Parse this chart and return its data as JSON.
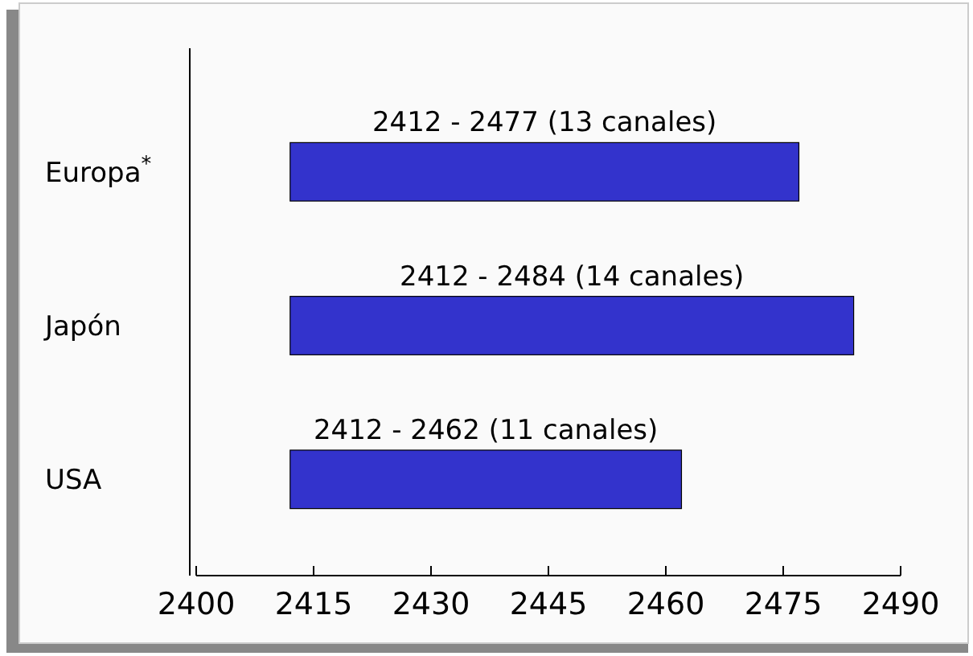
{
  "chart_data": {
    "type": "bar",
    "orientation": "horizontal",
    "categories": [
      "Europa$^{*}$",
      "Japón",
      "USA"
    ],
    "base": [
      2412,
      2412,
      2412
    ],
    "values": [
      65,
      72,
      50
    ],
    "annotations": [
      "2412 - 2477 (13 canales)",
      "2412 - 2484 (14 canales)",
      "2412 - 2462 (11 canales)"
    ],
    "color": "#3333cc",
    "xlim": [
      2400,
      2490
    ],
    "xticks": [
      2400,
      2415,
      2430,
      2445,
      2460,
      2475,
      2490
    ],
    "grid": false
  }
}
